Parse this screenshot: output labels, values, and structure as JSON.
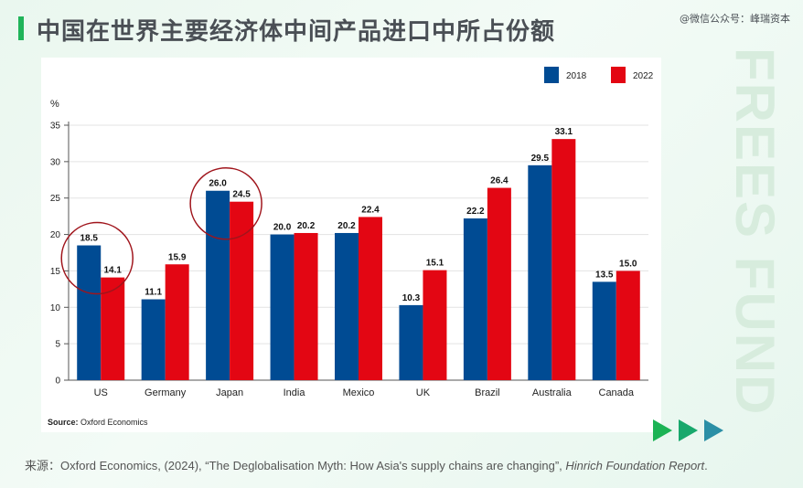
{
  "header": {
    "title": "中国在世界主要经济体中间产品进口中所占份额",
    "wechat": "@微信公众号：峰瑞资本"
  },
  "watermark": "FREES FUND",
  "chart_data": {
    "type": "bar",
    "categories": [
      "US",
      "Germany",
      "Japan",
      "India",
      "Mexico",
      "UK",
      "Brazil",
      "Australia",
      "Canada"
    ],
    "series": [
      {
        "name": "2018",
        "color": "#004b93",
        "values": [
          18.5,
          11.1,
          26.0,
          20.0,
          20.2,
          10.3,
          22.2,
          29.5,
          13.5
        ]
      },
      {
        "name": "2022",
        "color": "#e30613",
        "values": [
          14.1,
          15.9,
          24.5,
          20.2,
          22.4,
          15.1,
          26.4,
          33.1,
          15.0
        ]
      }
    ],
    "ylabel": "%",
    "ylim": [
      0,
      35
    ],
    "yticks": [
      0,
      5,
      10,
      15,
      20,
      25,
      30,
      35
    ],
    "grid": true,
    "legend_position": "top-right",
    "highlight_circles": [
      "US",
      "Japan"
    ],
    "source_label": "Source:",
    "source_text": "Oxford Economics"
  },
  "footer": {
    "caption_prefix": "来源：",
    "caption_main": "Oxford Economics, (2024), “The Deglobalisation Myth: How Asia's supply chains are changing”, ",
    "caption_italic": "Hinrich Foundation Report",
    "caption_end": "."
  },
  "colors": {
    "accent_green": "#20b45a",
    "series_2018": "#004b93",
    "series_2022": "#e30613",
    "highlight_circle": "#a0151c"
  }
}
